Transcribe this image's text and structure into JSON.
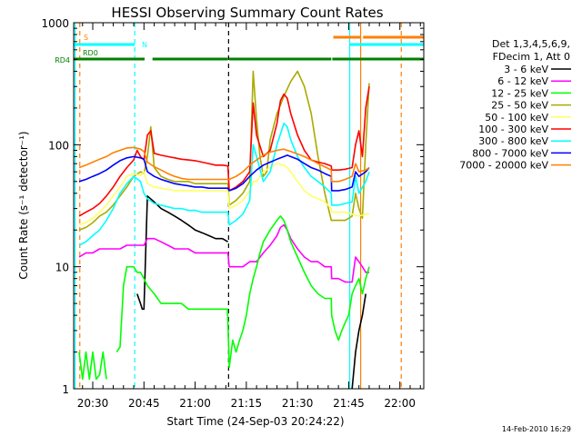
{
  "chart_data": {
    "type": "line",
    "title": "HESSI Observing Summary Count Rates",
    "xlabel": "Start Time (24-Sep-03 20:24:22)",
    "ylabel": "Count Rate (s⁻¹ detector⁻¹)",
    "date_stamp": "14-Feb-2010 16:29",
    "x_unit": "minutes of day (UT)",
    "xlim": [
      1224.4,
      1327
    ],
    "ylim": [
      1,
      1000
    ],
    "yscale": "log",
    "x_ticks": [
      {
        "value": 1230,
        "label": "20:30"
      },
      {
        "value": 1245,
        "label": "20:45"
      },
      {
        "value": 1260,
        "label": "21:00"
      },
      {
        "value": 1275,
        "label": "21:15"
      },
      {
        "value": 1290,
        "label": "21:30"
      },
      {
        "value": 1305,
        "label": "21:45"
      },
      {
        "value": 1320,
        "label": "22:00"
      }
    ],
    "y_ticks": [
      {
        "value": 1,
        "label": "1"
      },
      {
        "value": 10,
        "label": "10"
      },
      {
        "value": 100,
        "label": "100"
      },
      {
        "value": 1000,
        "label": "1000"
      }
    ],
    "legend": {
      "header": [
        "Det 1,3,4,5,6,9,",
        "FDecim 1, Att 0"
      ],
      "placement": "right"
    },
    "series": [
      {
        "name": "3 - 6 keV",
        "color": "#000000",
        "x": [
          1224.4,
          1226,
          1228,
          1230,
          1232,
          1234,
          1236,
          1238,
          1240,
          1240.5,
          1241,
          1242,
          1243,
          1244,
          1244.5,
          1245,
          1246,
          1248,
          1250,
          1252,
          1254,
          1256,
          1258,
          1259,
          1260,
          1262,
          1264,
          1266,
          1268,
          1269.6,
          1270,
          1272,
          1274,
          1276,
          1278,
          1280,
          1282,
          1284,
          1286,
          1288,
          1290,
          1292,
          1294,
          1296,
          1298,
          1299.9,
          1300,
          1302,
          1303,
          1304,
          1305,
          1306,
          1307,
          1308,
          1309,
          1310,
          1311
        ],
        "y": [
          null,
          null,
          null,
          null,
          null,
          null,
          null,
          null,
          null,
          null,
          null,
          null,
          6,
          5,
          4.5,
          4.5,
          38,
          34,
          30,
          28,
          26,
          24,
          22,
          21,
          20,
          19,
          18,
          17,
          17,
          16,
          null,
          null,
          null,
          null,
          null,
          null,
          null,
          null,
          null,
          null,
          null,
          null,
          null,
          null,
          null,
          null,
          null,
          null,
          null,
          null,
          null,
          1,
          2,
          3,
          4,
          6,
          null
        ]
      },
      {
        "name": "6 - 12 keV",
        "color": "#ff00ff",
        "x": [
          1226,
          1228,
          1230,
          1232,
          1234,
          1236,
          1238,
          1240,
          1242,
          1244,
          1245,
          1246,
          1248,
          1250,
          1252,
          1254,
          1256,
          1258,
          1260,
          1262,
          1264,
          1266,
          1268,
          1269.6,
          1270,
          1272,
          1274,
          1276,
          1278,
          1280,
          1282,
          1284,
          1285,
          1286,
          1287,
          1288,
          1290,
          1292,
          1294,
          1296,
          1298,
          1299.9,
          1300,
          1302,
          1304,
          1306,
          1307,
          1308,
          1309,
          1310,
          1311
        ],
        "y": [
          12,
          13,
          13,
          14,
          14,
          14,
          14,
          15,
          15,
          15,
          15,
          17,
          17,
          16,
          15,
          14,
          14,
          14,
          13,
          13,
          13,
          13,
          13,
          13,
          10,
          10,
          10,
          11,
          11,
          13,
          15,
          18,
          21,
          22,
          20,
          17,
          14,
          12,
          11,
          11,
          10,
          10,
          8,
          8,
          7.5,
          7.5,
          12,
          11,
          10,
          9,
          9
        ]
      },
      {
        "name": "12 - 25 keV",
        "color": "#00ff00",
        "x": [
          1226,
          1227,
          1228,
          1229,
          1230,
          1231,
          1232,
          1233,
          1234,
          1235,
          1236,
          1237,
          1238,
          1239,
          1240,
          1241,
          1242,
          1243,
          1244,
          1245,
          1246,
          1248,
          1250,
          1252,
          1254,
          1256,
          1258,
          1260,
          1262,
          1264,
          1266,
          1268,
          1269.5,
          1270,
          1271,
          1272,
          1273,
          1274,
          1275,
          1276,
          1277,
          1278,
          1279,
          1280,
          1282,
          1284,
          1285,
          1286,
          1287,
          1288,
          1290,
          1292,
          1294,
          1296,
          1298,
          1299.9,
          1300,
          1301,
          1302,
          1303,
          1304,
          1305,
          1306,
          1307,
          1308,
          1309,
          1310,
          1311
        ],
        "y": [
          2,
          1.2,
          2,
          1.2,
          2,
          1.2,
          1.3,
          2,
          1.2,
          null,
          null,
          2,
          2.2,
          7,
          10,
          10,
          10,
          9,
          9,
          8,
          7,
          6,
          5,
          5,
          5,
          5,
          4.5,
          4.5,
          4.5,
          4.5,
          4.5,
          4.5,
          4.5,
          1.5,
          2.5,
          2,
          2.5,
          3,
          4,
          6,
          8,
          10,
          13,
          16,
          20,
          24,
          26,
          24,
          20,
          16,
          12,
          9,
          7,
          6,
          5.5,
          5.5,
          4,
          3,
          2.5,
          3,
          3.5,
          4,
          6,
          7,
          8,
          6,
          8,
          10
        ]
      },
      {
        "name": "25 - 50 keV",
        "color": "#aaaa00",
        "x": [
          1226,
          1228,
          1230,
          1232,
          1234,
          1236,
          1238,
          1240,
          1242,
          1244,
          1245,
          1246,
          1247,
          1248,
          1250,
          1252,
          1254,
          1256,
          1258,
          1260,
          1262,
          1264,
          1266,
          1268,
          1269.6,
          1270,
          1272,
          1274,
          1276,
          1277,
          1278,
          1279,
          1280,
          1281,
          1282,
          1284,
          1286,
          1288,
          1290,
          1292,
          1294,
          1296,
          1298,
          1299.9,
          1300,
          1302,
          1304,
          1306,
          1307,
          1308,
          1309,
          1310,
          1311
        ],
        "y": [
          20,
          21,
          23,
          26,
          28,
          32,
          38,
          45,
          55,
          60,
          58,
          80,
          140,
          65,
          55,
          52,
          50,
          50,
          50,
          48,
          48,
          48,
          48,
          48,
          48,
          32,
          35,
          40,
          50,
          400,
          160,
          80,
          55,
          60,
          110,
          180,
          250,
          330,
          400,
          300,
          180,
          80,
          40,
          24,
          24,
          24,
          24,
          26,
          40,
          30,
          25,
          100,
          320
        ]
      },
      {
        "name": "50 - 100 keV",
        "color": "#ffff66",
        "x": [
          1226,
          1228,
          1230,
          1232,
          1234,
          1236,
          1238,
          1240,
          1242,
          1244,
          1245,
          1246,
          1248,
          1250,
          1252,
          1254,
          1256,
          1258,
          1260,
          1262,
          1264,
          1266,
          1268,
          1269.6,
          1270,
          1272,
          1274,
          1276,
          1277,
          1278,
          1280,
          1282,
          1284,
          1286,
          1287,
          1288,
          1290,
          1292,
          1294,
          1296,
          1298,
          1299.9,
          1300,
          1302,
          1304,
          1306,
          1308,
          1310,
          1311
        ],
        "y": [
          22,
          23,
          25,
          28,
          32,
          38,
          45,
          55,
          58,
          56,
          60,
          48,
          45,
          44,
          43,
          42,
          42,
          42,
          42,
          42,
          42,
          42,
          42,
          42,
          30,
          32,
          35,
          42,
          50,
          50,
          60,
          65,
          70,
          68,
          65,
          60,
          50,
          42,
          38,
          36,
          34,
          30,
          28,
          28,
          28,
          27,
          26,
          27,
          27
        ]
      },
      {
        "name": "100 - 300 keV",
        "color": "#ff0000",
        "x": [
          1226,
          1228,
          1230,
          1232,
          1234,
          1236,
          1238,
          1240,
          1242,
          1243,
          1244,
          1245,
          1246,
          1247,
          1248,
          1250,
          1252,
          1254,
          1256,
          1258,
          1260,
          1262,
          1264,
          1266,
          1268,
          1269.6,
          1270,
          1272,
          1274,
          1276,
          1277,
          1278,
          1280,
          1282,
          1284,
          1285,
          1286,
          1287,
          1288,
          1290,
          1292,
          1294,
          1296,
          1298,
          1299.9,
          1300,
          1302,
          1304,
          1306,
          1307,
          1308,
          1309,
          1310,
          1311
        ],
        "y": [
          26,
          28,
          30,
          33,
          38,
          45,
          55,
          65,
          75,
          90,
          80,
          75,
          120,
          130,
          85,
          82,
          80,
          78,
          76,
          75,
          74,
          72,
          70,
          68,
          68,
          67,
          42,
          45,
          50,
          60,
          220,
          120,
          80,
          90,
          150,
          230,
          260,
          240,
          180,
          120,
          90,
          75,
          72,
          70,
          67,
          62,
          62,
          63,
          65,
          100,
          130,
          80,
          200,
          300
        ]
      },
      {
        "name": "300 - 800 keV",
        "color": "#00ffff",
        "x": [
          1226,
          1228,
          1230,
          1232,
          1234,
          1236,
          1238,
          1240,
          1242,
          1244,
          1245,
          1246,
          1248,
          1250,
          1252,
          1254,
          1256,
          1258,
          1260,
          1262,
          1264,
          1266,
          1268,
          1269.6,
          1270,
          1272,
          1274,
          1276,
          1277,
          1278,
          1280,
          1282,
          1284,
          1286,
          1287,
          1288,
          1290,
          1292,
          1294,
          1296,
          1298,
          1299.9,
          1300,
          1302,
          1304,
          1306,
          1307,
          1308,
          1310,
          1311
        ],
        "y": [
          15,
          16,
          18,
          20,
          24,
          30,
          40,
          48,
          55,
          50,
          40,
          36,
          33,
          32,
          31,
          30,
          30,
          29,
          29,
          28,
          28,
          28,
          28,
          28,
          22,
          24,
          27,
          35,
          100,
          80,
          50,
          60,
          100,
          150,
          140,
          110,
          80,
          65,
          55,
          50,
          45,
          40,
          32,
          32,
          33,
          34,
          55,
          40,
          50,
          60
        ]
      },
      {
        "name": "800 - 7000 keV",
        "color": "#0000ff",
        "x": [
          1226,
          1228,
          1230,
          1232,
          1234,
          1236,
          1238,
          1240,
          1242,
          1244,
          1245,
          1246,
          1248,
          1250,
          1252,
          1254,
          1256,
          1258,
          1260,
          1262,
          1264,
          1266,
          1268,
          1269.6,
          1270,
          1272,
          1274,
          1276,
          1278,
          1280,
          1282,
          1284,
          1286,
          1287,
          1288,
          1290,
          1292,
          1294,
          1296,
          1298,
          1299.9,
          1300,
          1302,
          1304,
          1306,
          1307,
          1308,
          1310,
          1311
        ],
        "y": [
          50,
          52,
          55,
          58,
          62,
          68,
          74,
          78,
          80,
          78,
          76,
          60,
          55,
          52,
          50,
          48,
          47,
          46,
          45,
          45,
          44,
          44,
          44,
          44,
          42,
          44,
          48,
          55,
          62,
          68,
          72,
          76,
          80,
          82,
          80,
          76,
          70,
          65,
          62,
          58,
          55,
          42,
          42,
          43,
          45,
          60,
          55,
          60,
          65
        ]
      },
      {
        "name": "7000 - 20000 keV",
        "color": "#ff8000",
        "x": [
          1226,
          1228,
          1230,
          1232,
          1234,
          1236,
          1238,
          1240,
          1242,
          1244,
          1245,
          1246,
          1248,
          1250,
          1252,
          1254,
          1256,
          1258,
          1260,
          1262,
          1264,
          1266,
          1268,
          1269.6,
          1270,
          1272,
          1274,
          1276,
          1278,
          1280,
          1282,
          1284,
          1286,
          1287,
          1288,
          1290,
          1292,
          1294,
          1296,
          1298,
          1299.9,
          1300,
          1302,
          1304,
          1306,
          1307,
          1308,
          1310,
          1311
        ],
        "y": [
          65,
          68,
          72,
          76,
          80,
          86,
          90,
          94,
          95,
          92,
          88,
          72,
          66,
          62,
          58,
          55,
          53,
          52,
          52,
          52,
          52,
          52,
          52,
          52,
          52,
          55,
          60,
          68,
          75,
          82,
          87,
          90,
          92,
          90,
          88,
          84,
          80,
          75,
          70,
          66,
          62,
          50,
          50,
          52,
          55,
          70,
          60,
          62,
          65
        ]
      }
    ],
    "state_flags": [
      {
        "label": "S",
        "color": "#ff8000",
        "segments": [
          [
            1300.5,
            1308.5
          ],
          [
            1309.2,
            1327
          ]
        ],
        "level": 0
      },
      {
        "label": "N",
        "color": "#00ffff",
        "segments": [
          [
            1224.4,
            1242.3
          ],
          [
            1305.3,
            1327
          ]
        ],
        "level": 1
      },
      {
        "label": "RD0",
        "color": "#008000",
        "segments": [],
        "level": 2
      },
      {
        "label": "RD4",
        "color": "#008000",
        "segments": [
          [
            1224.4,
            1245.2
          ],
          [
            1247.5,
            1269.6
          ],
          [
            1270,
            1299.9
          ],
          [
            1300.2,
            1327
          ]
        ],
        "level": 3
      }
    ],
    "vlines": [
      {
        "x": 1224.8,
        "color": "#00ffff",
        "style": "solid"
      },
      {
        "x": 1226.2,
        "color": "#ff8000",
        "style": "dashed"
      },
      {
        "x": 1242.3,
        "color": "#00ffff",
        "style": "dashed"
      },
      {
        "x": 1269.8,
        "color": "#000000",
        "style": "dashed"
      },
      {
        "x": 1305.3,
        "color": "#00ffff",
        "style": "solid"
      },
      {
        "x": 1308.5,
        "color": "#ff8000",
        "style": "solid"
      },
      {
        "x": 1320.4,
        "color": "#ff8000",
        "style": "dashed"
      }
    ]
  }
}
